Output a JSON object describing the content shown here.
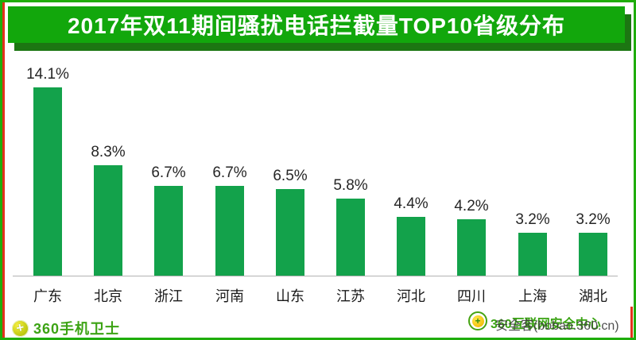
{
  "banner": {
    "title": "2017年双11期间骚扰电话拦截量TOP10省级分布",
    "background_color": "#12a70c",
    "shadow_color": "#1c7612",
    "text_color": "#ffffff"
  },
  "chart_data": {
    "type": "bar",
    "title": "2017年双11期间骚扰电话拦截量TOP10省级分布",
    "categories": [
      "广东",
      "北京",
      "浙江",
      "河南",
      "山东",
      "江苏",
      "河北",
      "四川",
      "上海",
      "湖北"
    ],
    "values": [
      14.1,
      8.3,
      6.7,
      6.7,
      6.5,
      5.8,
      4.4,
      4.2,
      3.2,
      3.2
    ],
    "value_labels": [
      "14.1%",
      "8.3%",
      "6.7%",
      "6.7%",
      "6.5%",
      "5.8%",
      "4.4%",
      "4.2%",
      "3.2%",
      "3.2%"
    ],
    "value_suffix": "%",
    "xlabel": "",
    "ylabel": "",
    "ylim": [
      0,
      15
    ],
    "grid": false,
    "legend": null,
    "bar_color": "#13a24b",
    "axis_line_color": "#b3b3b3",
    "label_color": "#262626"
  },
  "footer": {
    "left_brand": "360手机卫士",
    "right_watermark_green": "360互联网安全中心",
    "right_watermark_dark": "安全客(bobao.360.cn)"
  },
  "colors": {
    "page_border": "#1fad0b",
    "left_edge_stripe": "#e2311c",
    "background": "#ffffff"
  }
}
